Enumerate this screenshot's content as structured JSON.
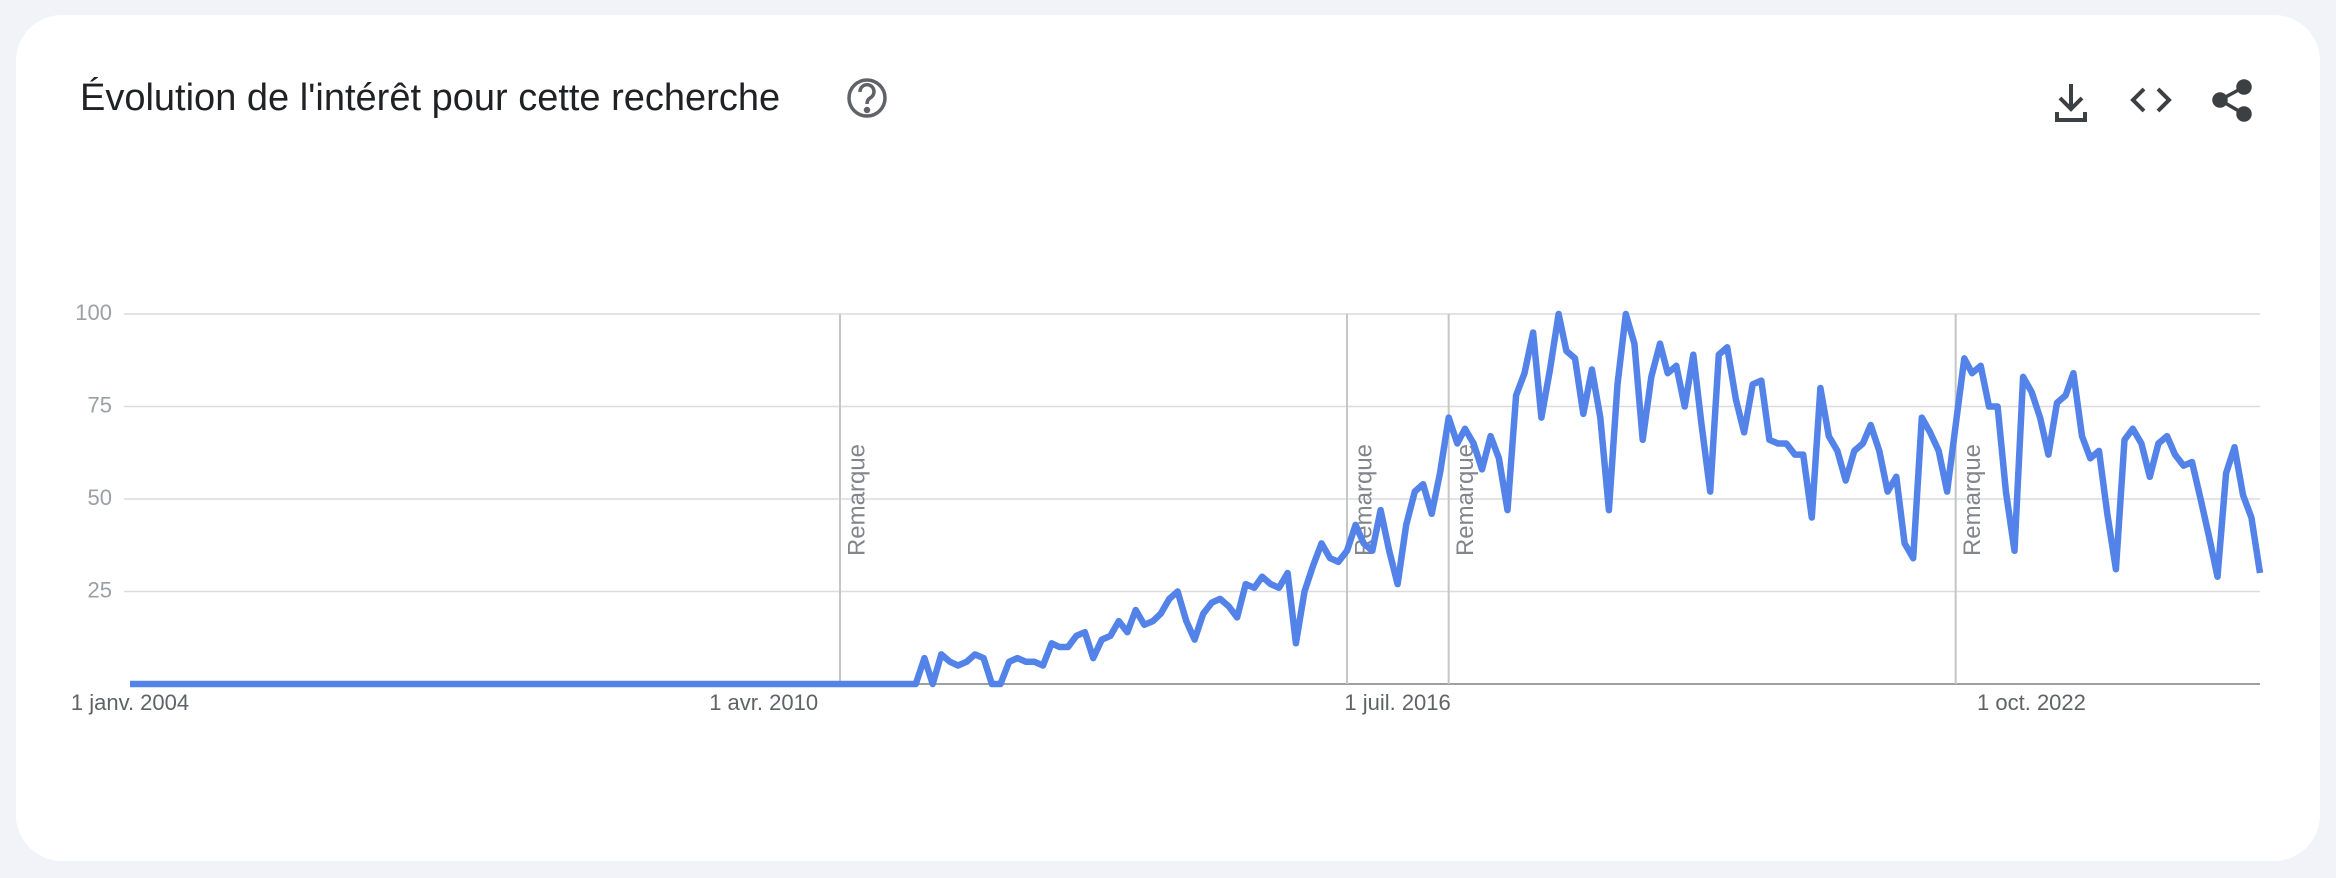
{
  "chart_data": {
    "type": "line",
    "title": "Évolution de l'intérêt pour cette recherche",
    "color": "#5383e8",
    "grid": true,
    "ylim": [
      0,
      100
    ],
    "yticks": [
      25,
      50,
      75,
      100
    ],
    "xlim": [
      "2004-01-01",
      "2025-01-01"
    ],
    "xticks": [
      {
        "value": "2004-01-01",
        "label": "1 janv. 2004"
      },
      {
        "value": "2010-04-01",
        "label": "1 avr. 2010"
      },
      {
        "value": "2016-07-01",
        "label": "1 juil. 2016"
      },
      {
        "value": "2022-10-01",
        "label": "1 oct. 2022"
      }
    ],
    "annotations": [
      {
        "x": "2011-01-01",
        "label": "Remarque"
      },
      {
        "x": "2016-01-01",
        "label": "Remarque"
      },
      {
        "x": "2017-01-01",
        "label": "Remarque"
      },
      {
        "x": "2022-01-01",
        "label": "Remarque"
      }
    ],
    "x": [
      "2004-01-01",
      "2011-10-01",
      "2011-11-01",
      "2011-12-01",
      "2012-01-01",
      "2012-02-01",
      "2012-03-01",
      "2012-04-01",
      "2012-05-01",
      "2012-06-01",
      "2012-07-01",
      "2012-08-01",
      "2012-09-01",
      "2012-10-01",
      "2012-11-01",
      "2012-12-01",
      "2013-01-01",
      "2013-02-01",
      "2013-03-01",
      "2013-04-01",
      "2013-05-01",
      "2013-06-01",
      "2013-07-01",
      "2013-08-01",
      "2013-09-01",
      "2013-10-01",
      "2013-11-01",
      "2013-12-01",
      "2014-01-01",
      "2014-02-01",
      "2014-03-01",
      "2014-04-01",
      "2014-05-01",
      "2014-06-01",
      "2014-07-01",
      "2014-08-01",
      "2014-09-01",
      "2014-10-01",
      "2014-11-01",
      "2014-12-01",
      "2015-01-01",
      "2015-02-01",
      "2015-03-01",
      "2015-04-01",
      "2015-05-01",
      "2015-06-01",
      "2015-07-01",
      "2015-08-01",
      "2015-09-01",
      "2015-10-01",
      "2015-11-01",
      "2015-12-01",
      "2016-01-01",
      "2016-02-01",
      "2016-03-01",
      "2016-04-01",
      "2016-05-01",
      "2016-06-01",
      "2016-07-01",
      "2016-08-01",
      "2016-09-01",
      "2016-10-01",
      "2016-11-01",
      "2016-12-01",
      "2017-01-01",
      "2017-02-01",
      "2017-03-01",
      "2017-04-01",
      "2017-05-01",
      "2017-06-01",
      "2017-07-01",
      "2017-08-01",
      "2017-09-01",
      "2017-10-01",
      "2017-11-01",
      "2017-12-01",
      "2018-01-01",
      "2018-02-01",
      "2018-03-01",
      "2018-04-01",
      "2018-05-01",
      "2018-06-01",
      "2018-07-01",
      "2018-08-01",
      "2018-09-01",
      "2018-10-01",
      "2018-11-01",
      "2018-12-01",
      "2019-01-01",
      "2019-02-01",
      "2019-03-01",
      "2019-04-01",
      "2019-05-01",
      "2019-06-01",
      "2019-07-01",
      "2019-08-01",
      "2019-09-01",
      "2019-10-01",
      "2019-11-01",
      "2019-12-01",
      "2020-01-01",
      "2020-02-01",
      "2020-03-01",
      "2020-04-01",
      "2020-05-01",
      "2020-06-01",
      "2020-07-01",
      "2020-08-01",
      "2020-09-01",
      "2020-10-01",
      "2020-11-01",
      "2020-12-01",
      "2021-01-01",
      "2021-02-01",
      "2021-03-01",
      "2021-04-01",
      "2021-05-01",
      "2021-06-01",
      "2021-07-01",
      "2021-08-01",
      "2021-09-01",
      "2021-10-01",
      "2021-11-01",
      "2021-12-01",
      "2022-01-01",
      "2022-02-01",
      "2022-03-01",
      "2022-04-01",
      "2022-05-01",
      "2022-06-01",
      "2022-07-01",
      "2022-08-01",
      "2022-09-01",
      "2022-10-01",
      "2022-11-01",
      "2022-12-01",
      "2023-01-01",
      "2023-02-01",
      "2023-03-01",
      "2023-04-01",
      "2023-05-01",
      "2023-06-01",
      "2023-07-01",
      "2023-08-01",
      "2023-09-01",
      "2023-10-01",
      "2023-11-01",
      "2023-12-01",
      "2024-01-01",
      "2024-02-01",
      "2024-03-01",
      "2024-04-01",
      "2024-05-01",
      "2024-06-01",
      "2024-07-01",
      "2024-08-01",
      "2024-09-01",
      "2024-10-01",
      "2024-11-01",
      "2024-12-01",
      "2025-01-01"
    ],
    "values": [
      0,
      0,
      7,
      0,
      8,
      6,
      5,
      6,
      8,
      7,
      0,
      0,
      6,
      7,
      6,
      6,
      5,
      11,
      10,
      10,
      13,
      14,
      7,
      12,
      13,
      17,
      14,
      20,
      16,
      17,
      19,
      23,
      25,
      17,
      12,
      19,
      22,
      23,
      21,
      18,
      27,
      26,
      29,
      27,
      26,
      30,
      11,
      25,
      32,
      38,
      34,
      33,
      36,
      43,
      38,
      36,
      47,
      36,
      27,
      43,
      52,
      54,
      46,
      57,
      72,
      65,
      69,
      65,
      58,
      67,
      61,
      47,
      78,
      84,
      95,
      72,
      85,
      100,
      90,
      88,
      73,
      85,
      72,
      47,
      81,
      100,
      92,
      66,
      83,
      92,
      84,
      86,
      75,
      89,
      70,
      52,
      89,
      91,
      77,
      68,
      81,
      82,
      66,
      65,
      65,
      62,
      62,
      45,
      80,
      67,
      63,
      55,
      63,
      65,
      70,
      63,
      52,
      56,
      38,
      34,
      72,
      68,
      63,
      52,
      70,
      88,
      84,
      86,
      75,
      75,
      52,
      36,
      83,
      79,
      72,
      62,
      76,
      78,
      84,
      67,
      61,
      63,
      46,
      31,
      66,
      69,
      65,
      56,
      65,
      67,
      62,
      59,
      60,
      50,
      40,
      29,
      57,
      64,
      51,
      45,
      30
    ]
  }
}
